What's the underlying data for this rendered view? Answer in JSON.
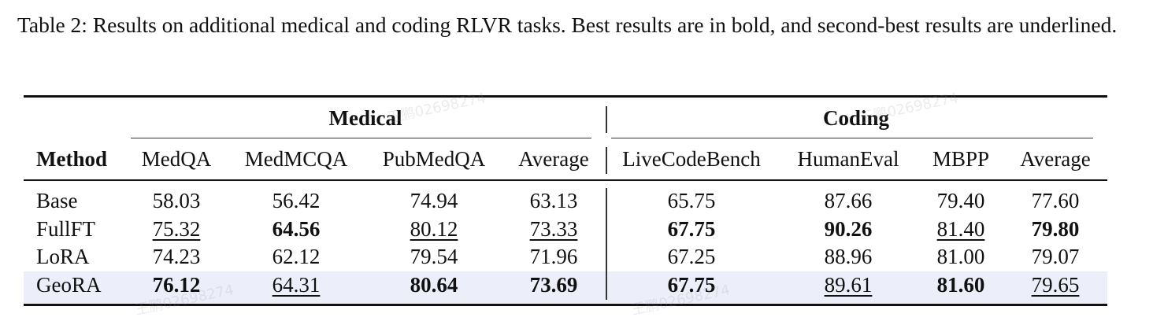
{
  "caption": "Table 2: Results on additional medical and coding RLVR tasks. Best results are in bold, and second-best results are underlined.",
  "table": {
    "groups": {
      "medical": "Medical",
      "coding": "Coding"
    },
    "headers": {
      "method": "Method",
      "medqa": "MedQA",
      "medmcqa": "MedMCQA",
      "pubmedqa": "PubMedQA",
      "med_avg": "Average",
      "livecodebench": "LiveCodeBench",
      "humaneval": "HumanEval",
      "mbpp": "MBPP",
      "code_avg": "Average"
    },
    "rows": [
      {
        "method": "Base",
        "highlighted": false,
        "cells": [
          {
            "value": "58.03",
            "style": "normal"
          },
          {
            "value": "56.42",
            "style": "normal"
          },
          {
            "value": "74.94",
            "style": "normal"
          },
          {
            "value": "63.13",
            "style": "normal"
          },
          {
            "value": "65.75",
            "style": "normal"
          },
          {
            "value": "87.66",
            "style": "normal"
          },
          {
            "value": "79.40",
            "style": "normal"
          },
          {
            "value": "77.60",
            "style": "normal"
          }
        ]
      },
      {
        "method": "FullFT",
        "highlighted": false,
        "cells": [
          {
            "value": "75.32",
            "style": "underline"
          },
          {
            "value": "64.56",
            "style": "bold"
          },
          {
            "value": "80.12",
            "style": "underline"
          },
          {
            "value": "73.33",
            "style": "underline"
          },
          {
            "value": "67.75",
            "style": "bold"
          },
          {
            "value": "90.26",
            "style": "bold"
          },
          {
            "value": "81.40",
            "style": "underline"
          },
          {
            "value": "79.80",
            "style": "bold"
          }
        ]
      },
      {
        "method": "LoRA",
        "highlighted": false,
        "cells": [
          {
            "value": "74.23",
            "style": "normal"
          },
          {
            "value": "62.12",
            "style": "normal"
          },
          {
            "value": "79.54",
            "style": "normal"
          },
          {
            "value": "71.96",
            "style": "normal"
          },
          {
            "value": "67.25",
            "style": "normal"
          },
          {
            "value": "88.96",
            "style": "normal"
          },
          {
            "value": "81.00",
            "style": "normal"
          },
          {
            "value": "79.07",
            "style": "normal"
          }
        ]
      },
      {
        "method": "GeoRA",
        "highlighted": true,
        "cells": [
          {
            "value": "76.12",
            "style": "bold"
          },
          {
            "value": "64.31",
            "style": "underline"
          },
          {
            "value": "80.64",
            "style": "bold"
          },
          {
            "value": "73.69",
            "style": "bold"
          },
          {
            "value": "67.75",
            "style": "bold"
          },
          {
            "value": "89.61",
            "style": "underline"
          },
          {
            "value": "81.60",
            "style": "bold"
          },
          {
            "value": "79.65",
            "style": "underline"
          }
        ]
      }
    ]
  },
  "colors": {
    "highlight_row": "#eceefa",
    "text": "#111111"
  }
}
